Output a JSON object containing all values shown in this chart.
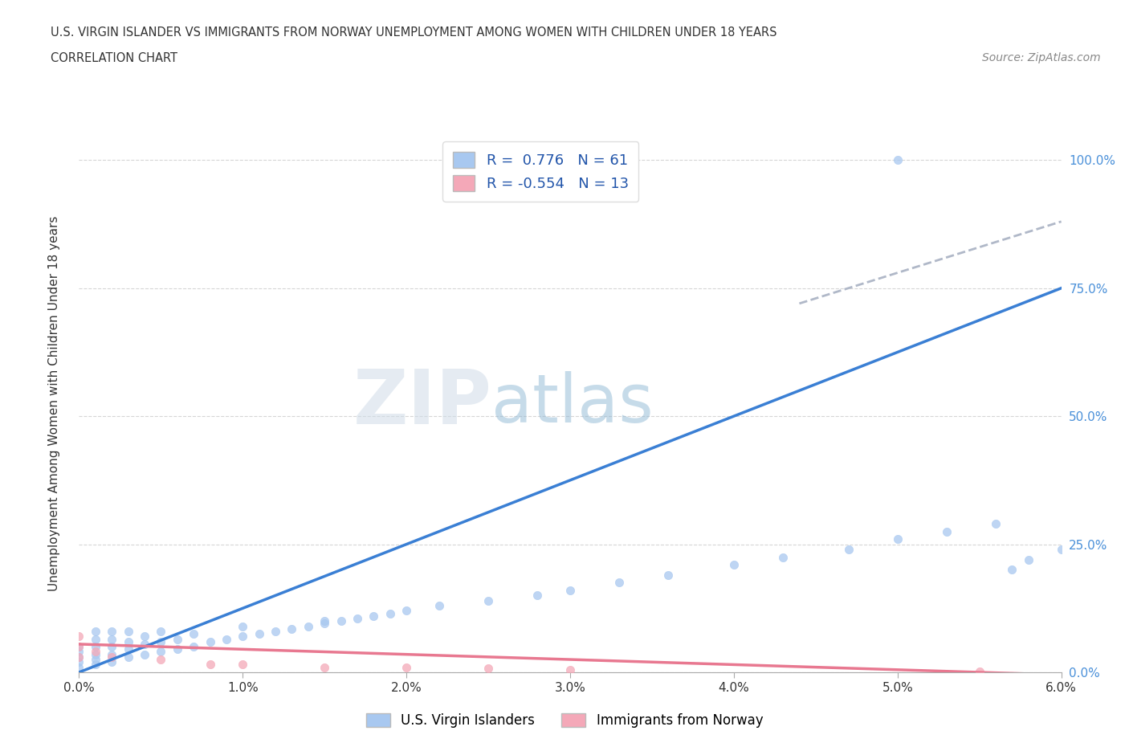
{
  "title_line1": "U.S. VIRGIN ISLANDER VS IMMIGRANTS FROM NORWAY UNEMPLOYMENT AMONG WOMEN WITH CHILDREN UNDER 18 YEARS",
  "title_line2": "CORRELATION CHART",
  "source": "Source: ZipAtlas.com",
  "ylabel": "Unemployment Among Women with Children Under 18 years",
  "xlim": [
    0.0,
    0.06
  ],
  "ylim": [
    0.0,
    1.05
  ],
  "xticks": [
    0.0,
    0.01,
    0.02,
    0.03,
    0.04,
    0.05,
    0.06
  ],
  "xticklabels": [
    "0.0%",
    "1.0%",
    "2.0%",
    "3.0%",
    "4.0%",
    "5.0%",
    "6.0%"
  ],
  "yticks": [
    0.0,
    0.25,
    0.5,
    0.75,
    1.0
  ],
  "yticklabels": [
    "0.0%",
    "25.0%",
    "50.0%",
    "75.0%",
    "100.0%"
  ],
  "r_blue": 0.776,
  "n_blue": 61,
  "r_pink": -0.554,
  "n_pink": 13,
  "blue_color": "#a8c8f0",
  "pink_color": "#f4a8b8",
  "blue_line_color": "#3a7fd4",
  "pink_line_color": "#e87890",
  "trend_line_color": "#b0b8c8",
  "watermark_zip": "ZIP",
  "watermark_atlas": "atlas",
  "legend_label_blue": "U.S. Virgin Islanders",
  "legend_label_pink": "Immigrants from Norway",
  "background_color": "#ffffff",
  "scatter_blue_x": [
    0.0,
    0.0,
    0.0,
    0.0,
    0.0,
    0.001,
    0.001,
    0.001,
    0.001,
    0.001,
    0.001,
    0.002,
    0.002,
    0.002,
    0.002,
    0.002,
    0.003,
    0.003,
    0.003,
    0.003,
    0.004,
    0.004,
    0.004,
    0.005,
    0.005,
    0.005,
    0.006,
    0.006,
    0.007,
    0.007,
    0.008,
    0.009,
    0.01,
    0.01,
    0.011,
    0.012,
    0.013,
    0.014,
    0.015,
    0.015,
    0.016,
    0.017,
    0.018,
    0.019,
    0.02,
    0.022,
    0.025,
    0.028,
    0.03,
    0.033,
    0.036,
    0.04,
    0.043,
    0.047,
    0.05,
    0.053,
    0.056,
    0.057,
    0.058,
    0.06,
    0.05
  ],
  "scatter_blue_y": [
    0.01,
    0.02,
    0.03,
    0.04,
    0.05,
    0.015,
    0.025,
    0.035,
    0.05,
    0.065,
    0.08,
    0.02,
    0.035,
    0.05,
    0.065,
    0.08,
    0.03,
    0.045,
    0.06,
    0.08,
    0.035,
    0.055,
    0.07,
    0.04,
    0.06,
    0.08,
    0.045,
    0.065,
    0.05,
    0.075,
    0.06,
    0.065,
    0.07,
    0.09,
    0.075,
    0.08,
    0.085,
    0.09,
    0.095,
    0.1,
    0.1,
    0.105,
    0.11,
    0.115,
    0.12,
    0.13,
    0.14,
    0.15,
    0.16,
    0.175,
    0.19,
    0.21,
    0.225,
    0.24,
    0.26,
    0.275,
    0.29,
    0.2,
    0.22,
    0.24,
    1.0
  ],
  "scatter_pink_x": [
    0.0,
    0.0,
    0.0,
    0.001,
    0.002,
    0.005,
    0.008,
    0.01,
    0.015,
    0.02,
    0.025,
    0.03,
    0.055
  ],
  "scatter_pink_y": [
    0.03,
    0.05,
    0.07,
    0.04,
    0.03,
    0.025,
    0.015,
    0.015,
    0.01,
    0.01,
    0.008,
    0.005,
    0.002
  ],
  "blue_trendline_x": [
    0.0,
    0.06
  ],
  "blue_trendline_y": [
    0.0,
    0.75
  ],
  "pink_trendline_x": [
    0.0,
    0.06
  ],
  "pink_trendline_y": [
    0.055,
    -0.005
  ],
  "gray_trendline_x": [
    0.044,
    0.06
  ],
  "gray_trendline_y": [
    0.72,
    0.88
  ]
}
